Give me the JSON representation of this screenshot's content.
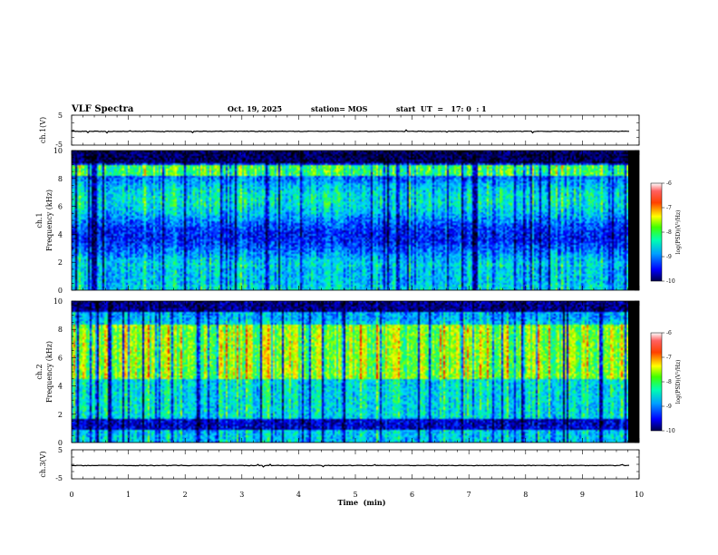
{
  "header": {
    "title": "VLF Spectra",
    "date": "Oct. 19, 2025",
    "station": "station= MOS",
    "start_ut": "start  UT  =   17: 0  : 1"
  },
  "colors": {
    "spectrogram_scale": [
      "#000000",
      "#00008b",
      "#0000ff",
      "#0080ff",
      "#00d8ff",
      "#00ff80",
      "#80ff00",
      "#ffff00",
      "#ff8000",
      "#ff0000",
      "#ffffff"
    ],
    "trace": "#000000"
  },
  "chart_data": [
    {
      "type": "line",
      "id": "ch1-waveform",
      "ylabel": "ch.1(V)",
      "ylim": [
        -5,
        5
      ],
      "yticks": [
        "5",
        "-5"
      ],
      "xlim": [
        0,
        10
      ],
      "series": [
        {
          "name": "ch.1 voltage",
          "level": -0.4
        }
      ]
    },
    {
      "type": "heatmap",
      "id": "ch1-spectrogram",
      "ylabel_line1": "ch.1",
      "ylabel_line2": "Frequency (kHz)",
      "ylim": [
        0,
        10
      ],
      "yticks": [
        "0",
        "2",
        "4",
        "6",
        "8",
        "10"
      ],
      "xlim": [
        0,
        9.83
      ],
      "colorbar": {
        "label": "log(PSD)(V²/Hz)",
        "range": [
          -10,
          -6
        ],
        "ticks": [
          "-6",
          "-7",
          "-8",
          "-9",
          "-10"
        ]
      }
    },
    {
      "type": "heatmap",
      "id": "ch2-spectrogram",
      "ylabel_line1": "ch.2",
      "ylabel_line2": "Frequency (kHz)",
      "ylim": [
        0,
        10
      ],
      "yticks": [
        "0",
        "2",
        "4",
        "6",
        "8",
        "10"
      ],
      "xlim": [
        0,
        9.83
      ],
      "colorbar": {
        "label": "log(PSD)(V²/Hz)",
        "range": [
          -10,
          -6
        ],
        "ticks": [
          "-6",
          "-7",
          "-8",
          "-9",
          "-10"
        ]
      }
    },
    {
      "type": "line",
      "id": "ch3-waveform",
      "ylabel": "ch.3(V)",
      "ylim": [
        -5,
        5
      ],
      "yticks": [
        "5",
        "-5"
      ],
      "xlim": [
        0,
        10
      ],
      "series": [
        {
          "name": "ch.3 voltage",
          "level": -0.4
        }
      ]
    }
  ],
  "x_axis": {
    "label": "Time  (min)",
    "range": [
      0,
      10
    ],
    "ticks": [
      "0",
      "1",
      "2",
      "3",
      "4",
      "5",
      "6",
      "7",
      "8",
      "9",
      "10"
    ]
  }
}
